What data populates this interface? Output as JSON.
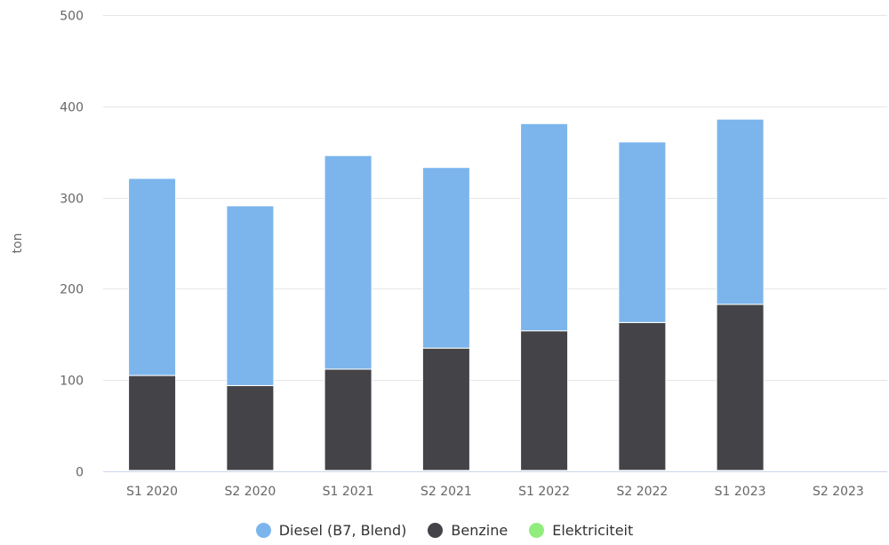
{
  "chart_data": {
    "type": "bar",
    "stacked": true,
    "ylabel": "ton",
    "ylim": [
      0,
      500
    ],
    "yticks": [
      0,
      100,
      200,
      300,
      400,
      500
    ],
    "yticks_labels": [
      "0",
      "100",
      "200",
      "300",
      "400",
      "500"
    ],
    "grid": true,
    "legend_position": "bottom",
    "categories": [
      "S1 2020",
      "S2 2020",
      "S1 2021",
      "S2 2021",
      "S1 2022",
      "S2 2022",
      "S1 2023",
      "S2 2023"
    ],
    "series": [
      {
        "name": "Diesel (B7, Blend)",
        "color": "#7cb5ec",
        "values": [
          216,
          197,
          234,
          198,
          227,
          198,
          203,
          0
        ]
      },
      {
        "name": "Benzine",
        "color": "#434348",
        "values": [
          104,
          93,
          111,
          134,
          153,
          162,
          182,
          0
        ]
      },
      {
        "name": "Elektriciteit",
        "color": "#90ed7d",
        "values": [
          1,
          1,
          1,
          1,
          1,
          1,
          1,
          0
        ]
      }
    ]
  }
}
